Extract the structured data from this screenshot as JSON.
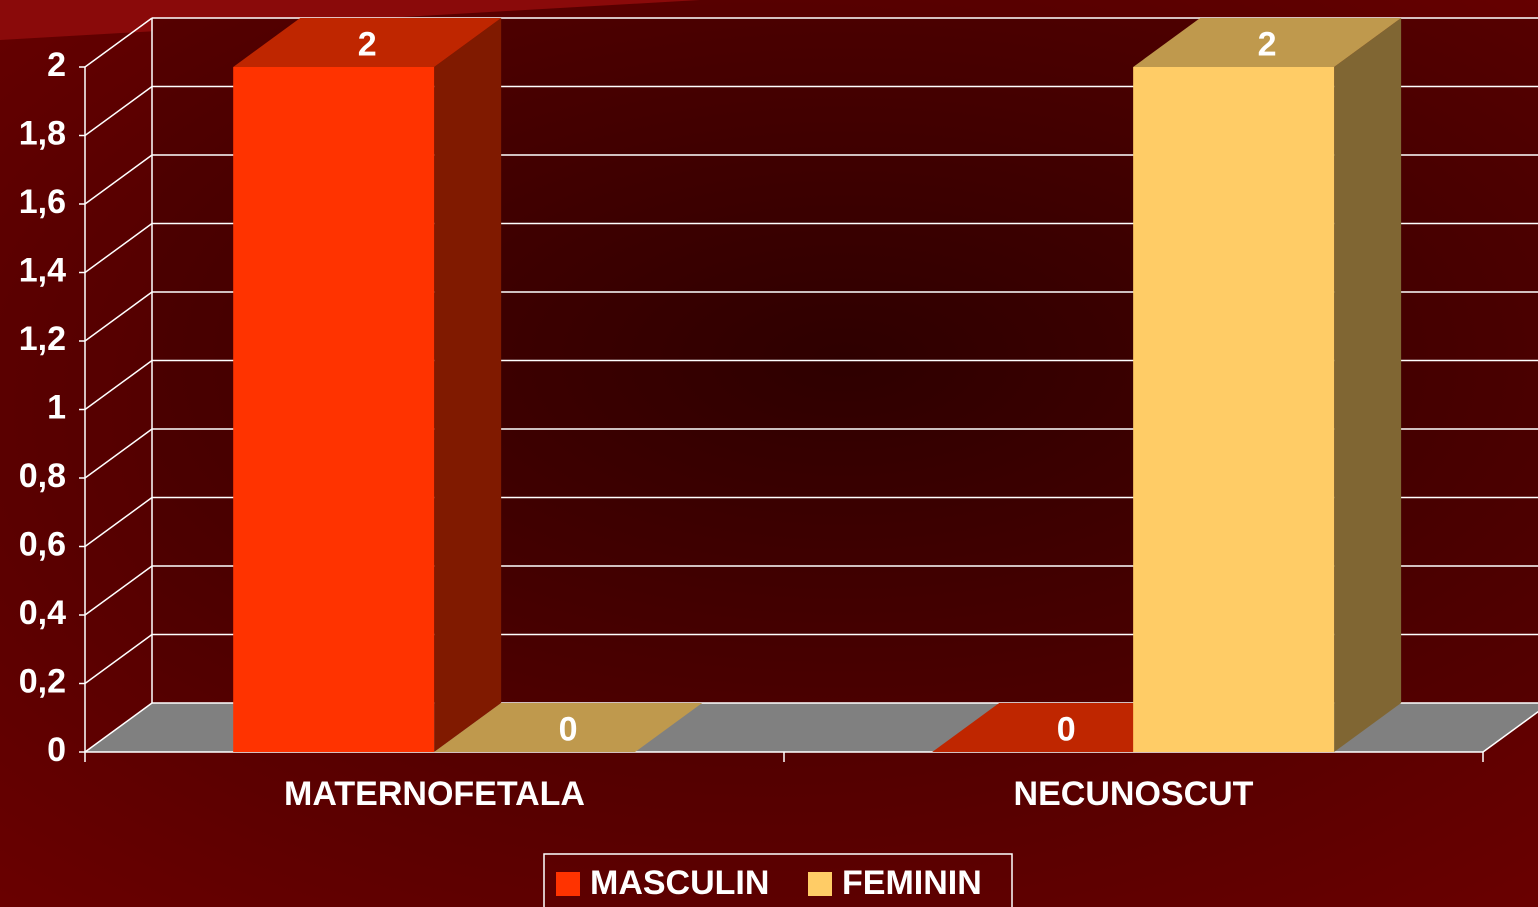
{
  "chart_data": {
    "type": "bar3d",
    "categories": [
      "MATERNOFETALA",
      "NECUNOSCUT"
    ],
    "series": [
      {
        "name": "MASCULIN",
        "color": "#ff3300",
        "values": [
          2,
          0
        ]
      },
      {
        "name": "FEMININ",
        "color": "#ffcc66",
        "values": [
          0,
          2
        ]
      }
    ],
    "ylim": [
      0,
      2
    ],
    "yticks": [
      0,
      {
        "value": 0.2,
        "label": "0,2"
      },
      {
        "value": 0.4,
        "label": "0,4"
      },
      {
        "value": 0.6,
        "label": "0,6"
      },
      {
        "value": 0.8,
        "label": "0,8"
      },
      1,
      {
        "value": 1.2,
        "label": "1,2"
      },
      {
        "value": 1.4,
        "label": "1,4"
      },
      {
        "value": 1.6,
        "label": "1,6"
      },
      {
        "value": 1.8,
        "label": "1,8"
      },
      2
    ],
    "grid": true
  }
}
